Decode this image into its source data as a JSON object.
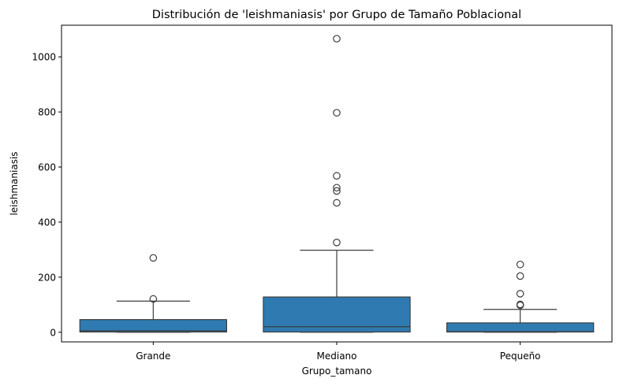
{
  "chart_data": {
    "type": "box",
    "title": "Distribución de 'leishmaniasis' por Grupo de Tamaño Poblacional",
    "xlabel": "Grupo_tamano",
    "ylabel": "leishmaniasis",
    "ylim": [
      -35,
      1115
    ],
    "yticks": [
      0,
      200,
      400,
      600,
      800,
      1000
    ],
    "grid": false,
    "box_color": "#2f7bb1",
    "line_color": "#3d3d3d",
    "groups": [
      {
        "name": "Grande",
        "whisker_low": 0,
        "q1": 1,
        "median": 5,
        "q3": 46,
        "whisker_high": 113,
        "outliers": [
          121,
          270
        ]
      },
      {
        "name": "Mediano",
        "whisker_low": 0,
        "q1": 1,
        "median": 20,
        "q3": 128,
        "whisker_high": 298,
        "outliers": [
          326,
          470,
          513,
          525,
          568,
          797,
          1066
        ]
      },
      {
        "name": "Pequeño",
        "whisker_low": 0,
        "q1": 1,
        "median": 2,
        "q3": 34,
        "whisker_high": 83,
        "outliers": [
          98,
          101,
          140,
          204,
          246
        ]
      }
    ]
  }
}
